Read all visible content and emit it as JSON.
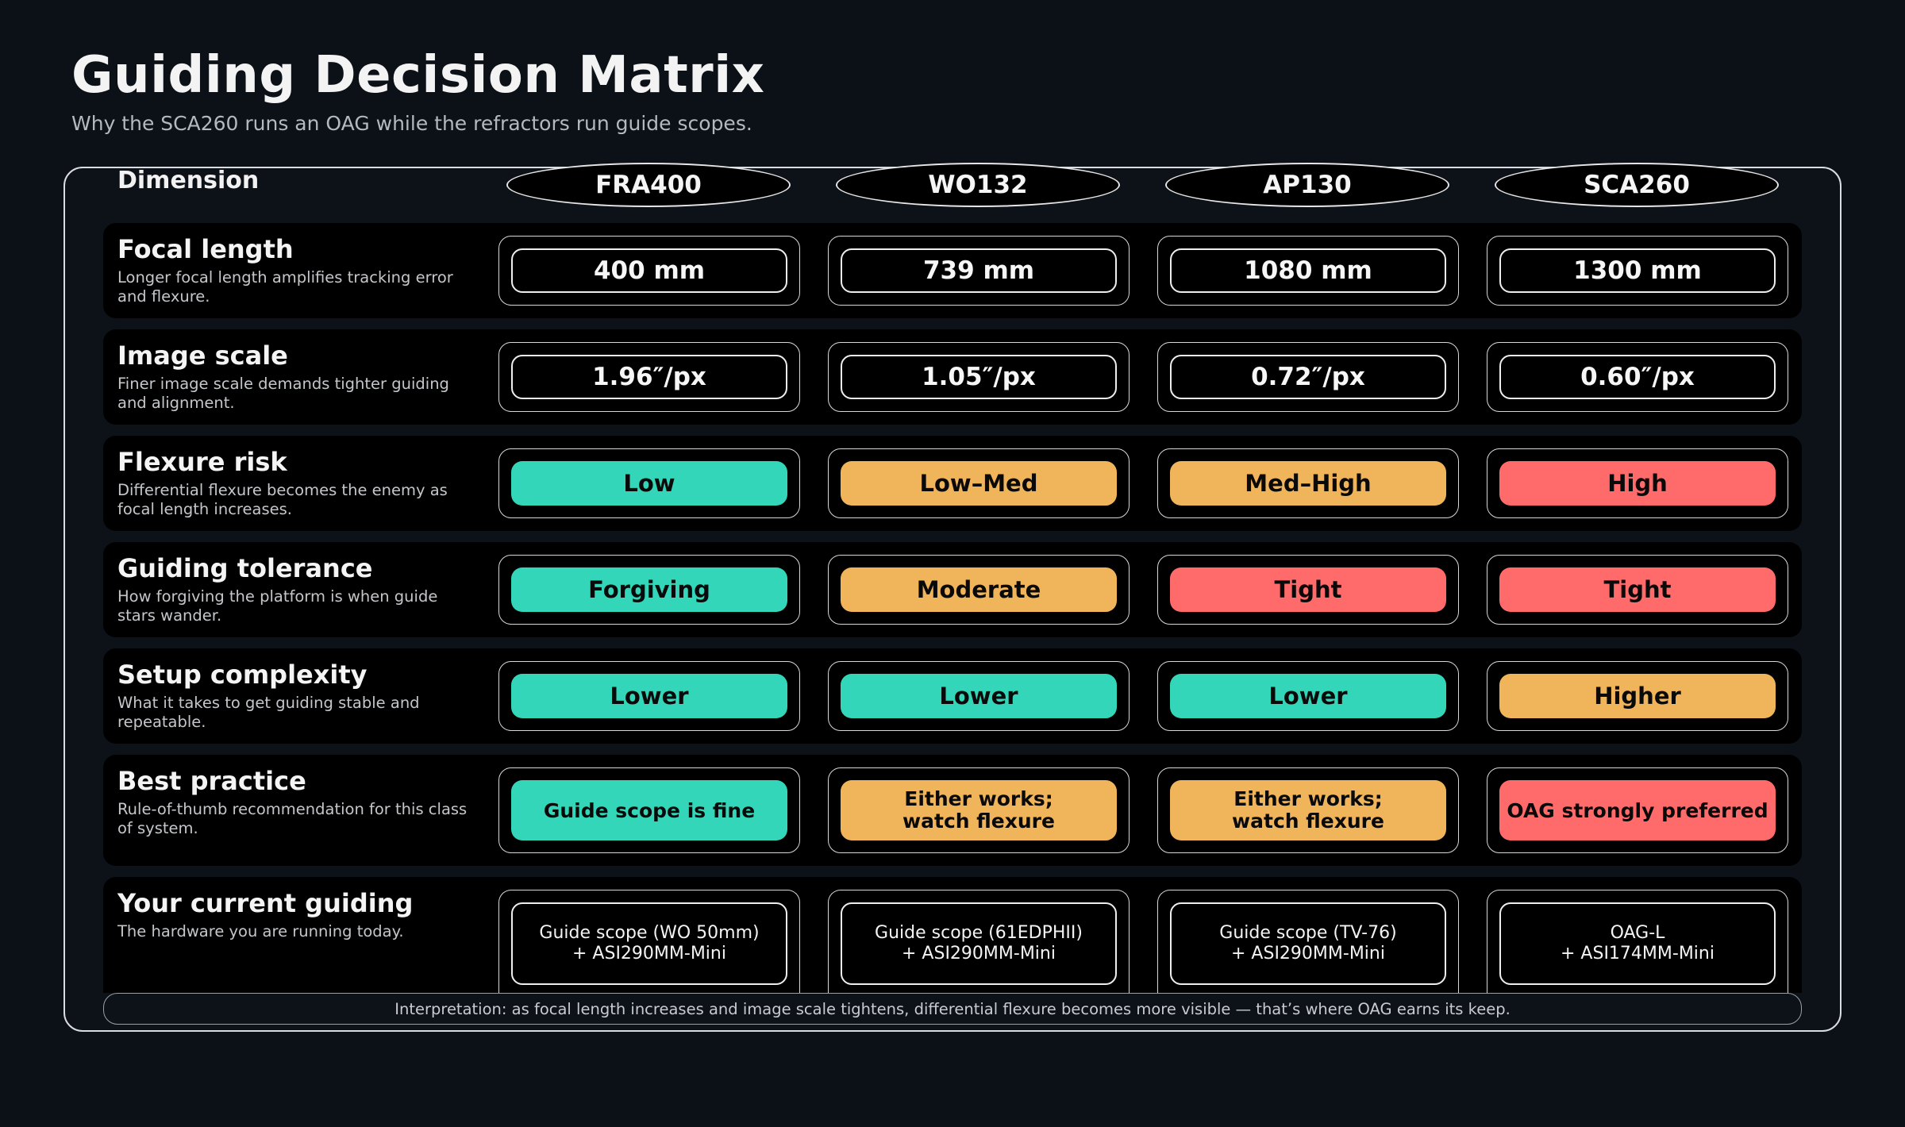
{
  "title": "Guiding Decision Matrix",
  "subtitle": "Why the SCA260 runs an OAG while the refractors run guide scopes.",
  "dimension_header": "Dimension",
  "columns": [
    "FRA400",
    "WO132",
    "AP130",
    "SCA260"
  ],
  "rows": [
    {
      "title": "Focal length",
      "desc": "Longer focal length amplifies tracking error and flexure.",
      "cells": [
        {
          "text": "400 mm",
          "style": "outline"
        },
        {
          "text": "739 mm",
          "style": "outline"
        },
        {
          "text": "1080 mm",
          "style": "outline"
        },
        {
          "text": "1300 mm",
          "style": "outline"
        }
      ]
    },
    {
      "title": "Image scale",
      "desc": "Finer image scale demands tighter guiding and alignment.",
      "cells": [
        {
          "text": "1.96″/px",
          "style": "outline"
        },
        {
          "text": "1.05″/px",
          "style": "outline"
        },
        {
          "text": "0.72″/px",
          "style": "outline"
        },
        {
          "text": "0.60″/px",
          "style": "outline"
        }
      ]
    },
    {
      "title": "Flexure risk",
      "desc": "Differential flexure becomes the enemy as focal length increases.",
      "cells": [
        {
          "text": "Low",
          "style": "good"
        },
        {
          "text": "Low–Med",
          "style": "mid"
        },
        {
          "text": "Med–High",
          "style": "mid"
        },
        {
          "text": "High",
          "style": "bad"
        }
      ]
    },
    {
      "title": "Guiding tolerance",
      "desc": "How forgiving the platform is when guide stars wander.",
      "cells": [
        {
          "text": "Forgiving",
          "style": "good"
        },
        {
          "text": "Moderate",
          "style": "mid"
        },
        {
          "text": "Tight",
          "style": "bad"
        },
        {
          "text": "Tight",
          "style": "bad"
        }
      ]
    },
    {
      "title": "Setup complexity",
      "desc": "What it takes to get guiding stable and repeatable.",
      "cells": [
        {
          "text": "Lower",
          "style": "good"
        },
        {
          "text": "Lower",
          "style": "good"
        },
        {
          "text": "Lower",
          "style": "good"
        },
        {
          "text": "Higher",
          "style": "mid"
        }
      ]
    },
    {
      "title": "Best practice",
      "desc": "Rule-of-thumb recommendation for this class of system.",
      "cells": [
        {
          "text": "Guide scope is fine",
          "style": "good"
        },
        {
          "text": "Either works;\nwatch flexure",
          "style": "mid"
        },
        {
          "text": "Either works;\nwatch flexure",
          "style": "mid"
        },
        {
          "text": "OAG strongly preferred",
          "style": "bad"
        }
      ]
    },
    {
      "title": "Your current guiding",
      "desc": "The hardware you are running today.",
      "cells": [
        {
          "text": "Guide scope (WO 50mm)\n+ ASI290MM-Mini",
          "style": "hw"
        },
        {
          "text": "Guide scope (61EDPHII)\n+ ASI290MM-Mini",
          "style": "hw"
        },
        {
          "text": "Guide scope (TV-76)\n+ ASI290MM-Mini",
          "style": "hw"
        },
        {
          "text": "OAG-L\n+ ASI174MM-Mini",
          "style": "hw"
        }
      ]
    }
  ],
  "interpretation": "Interpretation: as focal length increases and image scale tightens, differential flexure becomes more visible — that’s where OAG earns its keep.",
  "colors": {
    "background": "#0c1017",
    "good": "#33d6b8",
    "mid": "#f0b45b",
    "bad": "#ff6b6b"
  }
}
